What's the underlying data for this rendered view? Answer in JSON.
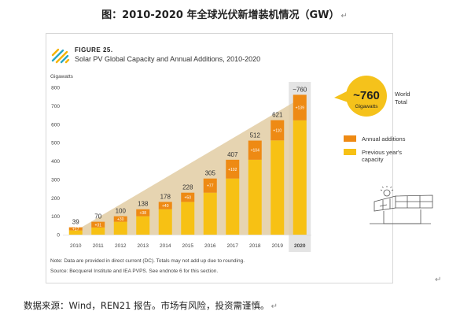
{
  "doc_title": "图：2010-2020 年全球光伏新增装机情况（GW）",
  "figure_label": "FIGURE 25.",
  "figure_title": "Solar PV Global Capacity and Annual Additions, 2010-2020",
  "note": "Note: Data are provided in direct current (DC). Totals may not add up due to rounding.",
  "source": "Source: Becquerel Institute and IEA PVPS. See endnote 6 for this section.",
  "footer_source": "数据来源：Wind，REN21 报告。市场有风险，投资需谨慎。",
  "callout": {
    "value": "~760",
    "unit": "Gigawatts",
    "label_line1": "World",
    "label_line2": "Total"
  },
  "colors": {
    "previous": "#f7c114",
    "annual": "#ee8a14",
    "wedge": "#e2cda3",
    "highlight": "#e4e4e4",
    "axis_text": "#444444",
    "callout_fill": "#f5c21b"
  },
  "chart_data": {
    "type": "bar",
    "stacked": true,
    "categories": [
      "2010",
      "2011",
      "2012",
      "2013",
      "2014",
      "2015",
      "2016",
      "2017",
      "2018",
      "2019",
      "2020"
    ],
    "series": [
      {
        "name": "Previous year's capacity",
        "values": [
          23,
          39,
          70,
          100,
          138,
          178,
          228,
          305,
          407,
          512,
          621
        ]
      },
      {
        "name": "Annual additions",
        "values": [
          17,
          31,
          30,
          38,
          40,
          50,
          77,
          102,
          104,
          110,
          139
        ]
      }
    ],
    "total_labels": [
      "39",
      "70",
      "100",
      "138",
      "178",
      "228",
      "305",
      "407",
      "512",
      "621",
      "~760"
    ],
    "addition_labels": [
      "+17",
      "+31",
      "+30",
      "+38",
      "+40",
      "+50",
      "+77",
      "+102",
      "+104",
      "+110",
      "+139"
    ],
    "ylabel": "Gigawatts",
    "ylim": [
      0,
      800
    ],
    "yticks": [
      0,
      100,
      200,
      300,
      400,
      500,
      600,
      700,
      800
    ],
    "highlight_category": "2020",
    "legend": {
      "position": "right",
      "items": [
        "Annual additions",
        "Previous year's capacity"
      ]
    },
    "grid": false
  }
}
